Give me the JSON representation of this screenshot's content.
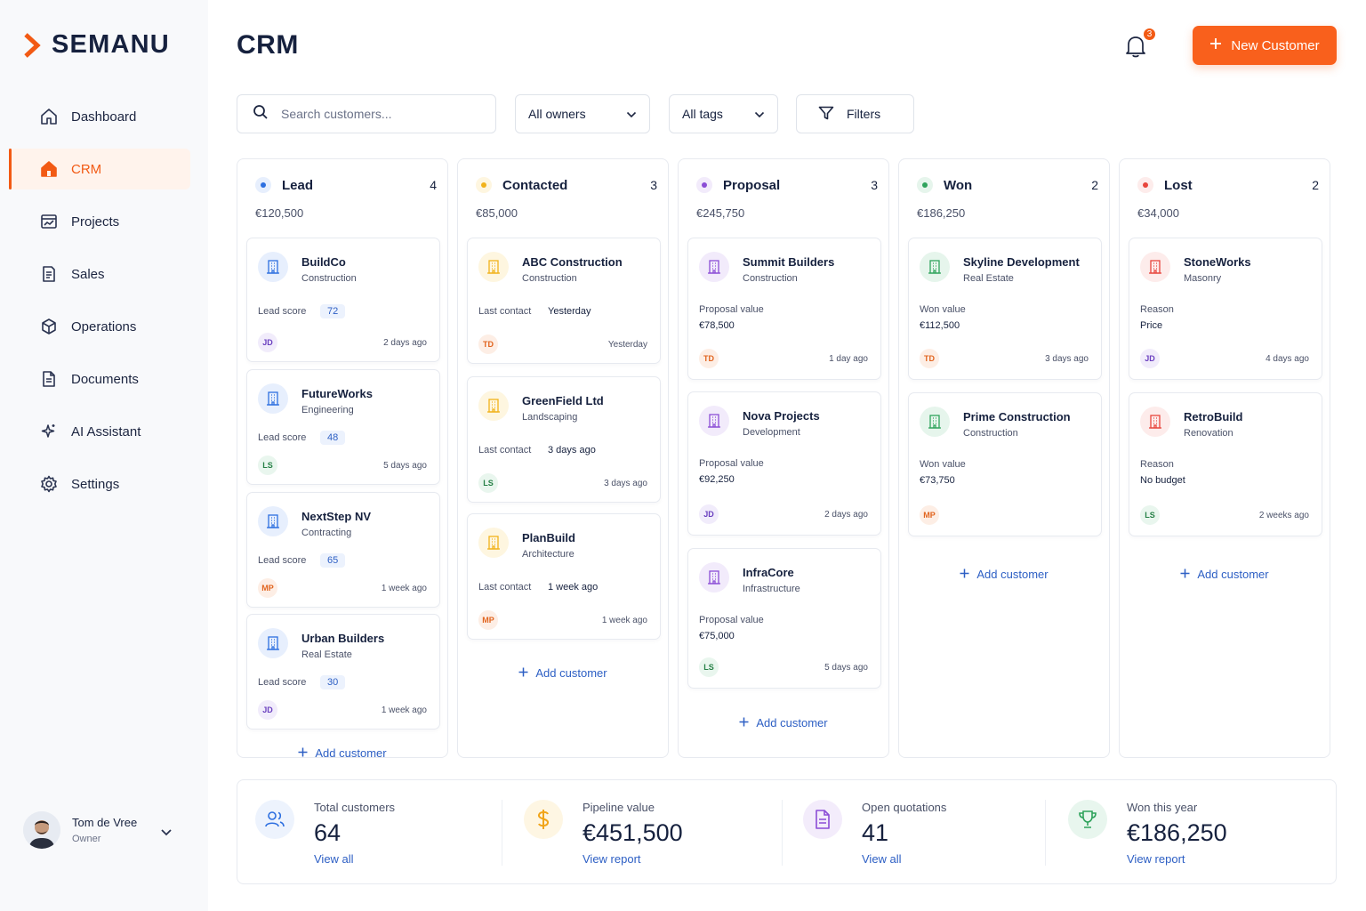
{
  "brand": {
    "name": "SEMANU",
    "accent": "#f25a14"
  },
  "sidebar": {
    "items": [
      {
        "label": "Dashboard",
        "icon": "home-icon"
      },
      {
        "label": "CRM",
        "icon": "home-filled-icon",
        "active": true
      },
      {
        "label": "Projects",
        "icon": "chart-window-icon"
      },
      {
        "label": "Sales",
        "icon": "document-icon"
      },
      {
        "label": "Operations",
        "icon": "cube-icon"
      },
      {
        "label": "Documents",
        "icon": "file-icon"
      },
      {
        "label": "AI Assistant",
        "icon": "sparkle-icon"
      },
      {
        "label": "Settings",
        "icon": "gear-icon"
      }
    ],
    "user": {
      "name": "Tom de Vree",
      "role": "Owner"
    }
  },
  "header": {
    "title": "CRM",
    "notifications": "3",
    "new_button": "New Customer"
  },
  "toolbar": {
    "search_placeholder": "Search customers...",
    "owners": "All owners",
    "tags": "All tags",
    "filters": "Filters"
  },
  "columns": [
    {
      "title": "Lead",
      "count": "4",
      "total": "€120,500",
      "color": "#2d6fe0",
      "dot_bg": "#e7effd",
      "add_label": "Add customer",
      "cards": [
        {
          "name": "BuildCo",
          "sub": "Construction",
          "metric_label": "Lead score",
          "metric_value": "72",
          "avatar": "JD",
          "time": "2 days ago"
        },
        {
          "name": "FutureWorks",
          "sub": "Engineering",
          "metric_label": "Lead score",
          "metric_value": "48",
          "avatar": "LS",
          "time": "5 days ago"
        },
        {
          "name": "NextStep NV",
          "sub": "Contracting",
          "metric_label": "Lead score",
          "metric_value": "65",
          "avatar": "MP",
          "time": "1 week ago"
        },
        {
          "name": "Urban Builders",
          "sub": "Real Estate",
          "metric_label": "Lead score",
          "metric_value": "30",
          "avatar": "JD",
          "time": "1 week ago"
        }
      ]
    },
    {
      "title": "Contacted",
      "count": "3",
      "total": "€85,000",
      "color": "#f1b21a",
      "dot_bg": "#fef6e0",
      "add_label": "Add customer",
      "cards": [
        {
          "name": "ABC Construction",
          "sub": "Construction",
          "metric_label": "Last contact",
          "metric_value": "Yesterday",
          "avatar": "TD",
          "time": "Yesterday"
        },
        {
          "name": "GreenField Ltd",
          "sub": "Landscaping",
          "metric_label": "Last contact",
          "metric_value": "3 days ago",
          "avatar": "LS",
          "time": "3 days ago"
        },
        {
          "name": "PlanBuild",
          "sub": "Architecture",
          "metric_label": "Last contact",
          "metric_value": "1 week ago",
          "avatar": "MP",
          "time": "1 week ago"
        }
      ]
    },
    {
      "title": "Proposal",
      "count": "3",
      "total": "€245,750",
      "color": "#8b4dd6",
      "dot_bg": "#f2ebfb",
      "add_label": "Add customer",
      "cards": [
        {
          "name": "Summit Builders",
          "sub": "Construction",
          "metric_label": "Proposal value",
          "metric_value": "€78,500",
          "avatar": "TD",
          "time": "1 day ago"
        },
        {
          "name": "Nova Projects",
          "sub": "Development",
          "metric_label": "Proposal value",
          "metric_value": "€92,250",
          "avatar": "JD",
          "time": "2 days ago"
        },
        {
          "name": "InfraCore",
          "sub": "Infrastructure",
          "metric_label": "Proposal value",
          "metric_value": "€75,000",
          "avatar": "LS",
          "time": "5 days ago"
        }
      ]
    },
    {
      "title": "Won",
      "count": "2",
      "total": "€186,250",
      "color": "#2fa35c",
      "dot_bg": "#e6f5ec",
      "add_label": "Add customer",
      "cards": [
        {
          "name": "Skyline Development",
          "sub": "Real Estate",
          "metric_label": "Won value",
          "metric_value": "€112,500",
          "avatar": "TD",
          "time": "3 days ago"
        },
        {
          "name": "Prime Construction",
          "sub": "Construction",
          "metric_label": "Won value",
          "metric_value": "€73,750",
          "avatar": "MP",
          "time": ""
        }
      ]
    },
    {
      "title": "Lost",
      "count": "2",
      "total": "€34,000",
      "color": "#e8453c",
      "dot_bg": "#fdeceb",
      "add_label": "Add customer",
      "cards": [
        {
          "name": "StoneWorks",
          "sub": "Masonry",
          "metric_label": "Reason",
          "metric_value": "Price",
          "avatar": "JD",
          "time": "4 days ago"
        },
        {
          "name": "RetroBuild",
          "sub": "Renovation",
          "metric_label": "Reason",
          "metric_value": "No budget",
          "avatar": "LS",
          "time": "2 weeks ago"
        }
      ]
    }
  ],
  "stats": [
    {
      "label": "Total customers",
      "value": "64",
      "link": "View all",
      "icon": "users-icon",
      "color": "#2d6fe0",
      "bg": "#edf3fd"
    },
    {
      "label": "Pipeline value",
      "value": "€451,500",
      "link": "View report",
      "icon": "dollar-icon",
      "color": "#f1a51a",
      "bg": "#fef6e3"
    },
    {
      "label": "Open quotations",
      "value": "41",
      "link": "View all",
      "icon": "document-icon",
      "color": "#8b4dd6",
      "bg": "#f3ecfb"
    },
    {
      "label": "Won this year",
      "value": "€186,250",
      "link": "View report",
      "icon": "trophy-icon",
      "color": "#2fa35c",
      "bg": "#e8f6ee"
    }
  ]
}
